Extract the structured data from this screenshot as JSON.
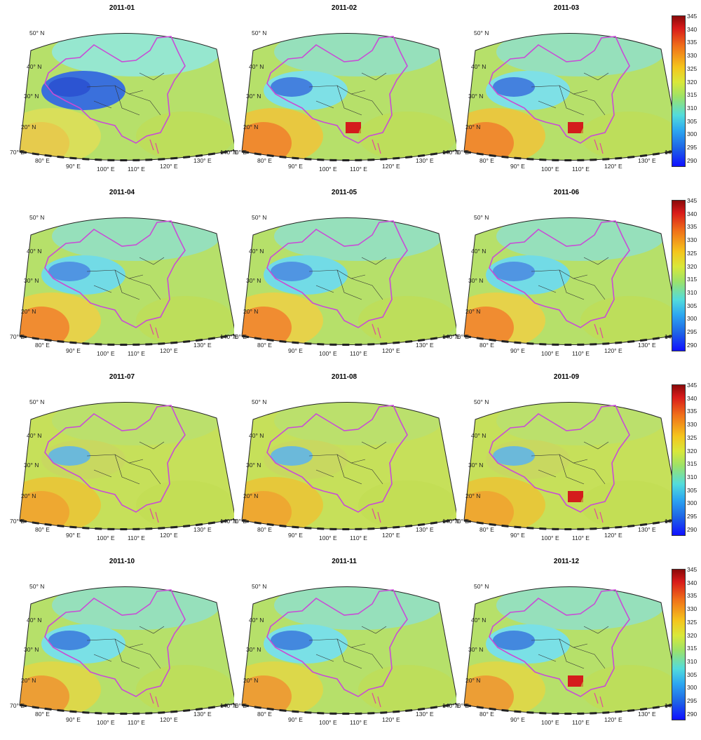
{
  "panels": [
    {
      "title": "2011-01",
      "variant": "winter"
    },
    {
      "title": "2011-02",
      "variant": "feb"
    },
    {
      "title": "2011-03",
      "variant": "mar"
    },
    {
      "title": "2011-04",
      "variant": "apr"
    },
    {
      "title": "2011-05",
      "variant": "may"
    },
    {
      "title": "2011-06",
      "variant": "jun"
    },
    {
      "title": "2011-07",
      "variant": "jul"
    },
    {
      "title": "2011-08",
      "variant": "aug"
    },
    {
      "title": "2011-09",
      "variant": "sep"
    },
    {
      "title": "2011-10",
      "variant": "oct"
    },
    {
      "title": "2011-11",
      "variant": "nov"
    },
    {
      "title": "2011-12",
      "variant": "dec"
    }
  ],
  "lat_labels": [
    "50° N",
    "40° N",
    "30° N",
    "20° N"
  ],
  "lon_labels": [
    "70° E",
    "80° E",
    "90° E",
    "100° E",
    "110° E",
    "120° E",
    "130° E",
    "140° E"
  ],
  "colorbar": {
    "ticks": [
      "345",
      "340",
      "335",
      "330",
      "325",
      "320",
      "315",
      "310",
      "305",
      "300",
      "295",
      "290"
    ],
    "min": 290,
    "max": 345
  }
}
